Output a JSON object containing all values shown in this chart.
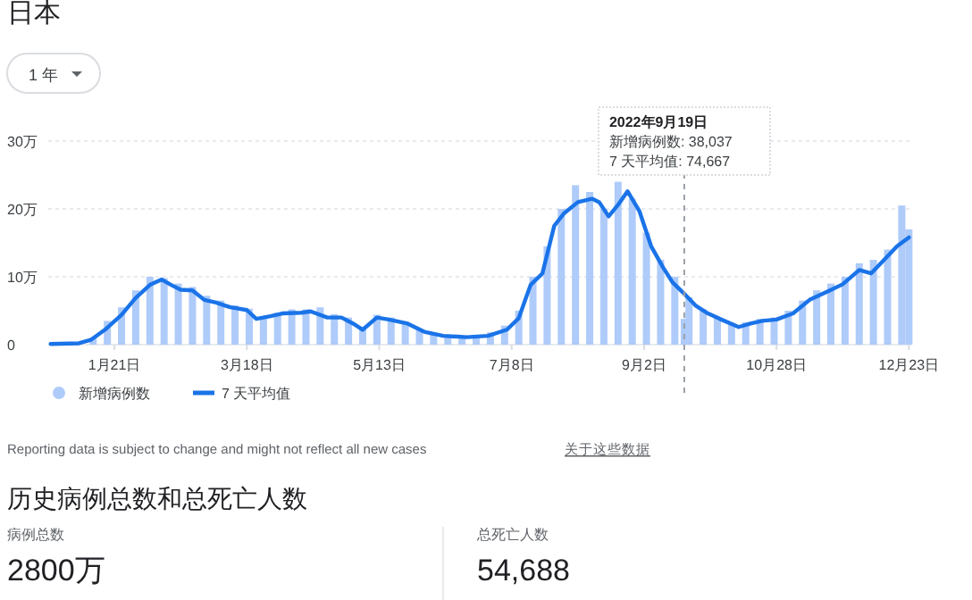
{
  "chart_data": [
    {
      "type": "bar",
      "title": "日本",
      "annotations": [
        "1 年",
        "2022年9月19日",
        "新增病例数: 38,037",
        "7 天平均值: 74,667",
        "Reporting data is subject to change and might not reflect all new cases",
        "关于这些数据"
      ],
      "xlim": [
        "2021-12-24",
        "2022-12-24"
      ],
      "ylim": [
        0,
        30
      ],
      "xticks": [
        {
          "value": "2022-01-21",
          "label": "1月21日"
        },
        {
          "value": "2022-03-18",
          "label": "3月18日"
        },
        {
          "value": "2022-05-13",
          "label": "5月13日"
        },
        {
          "value": "2022-07-08",
          "label": "7月8日"
        },
        {
          "value": "2022-09-02",
          "label": "9月2日"
        },
        {
          "value": "2022-10-28",
          "label": "10月28日"
        },
        {
          "value": "2022-12-23",
          "label": "12月23日"
        }
      ],
      "yticks": [
        0,
        {
          "value": 10,
          "label": "10万"
        },
        {
          "value": 20,
          "label": "20万"
        },
        {
          "value": 30,
          "label": "30万"
        }
      ],
      "grid": "y",
      "legend": "bottom left",
      "ref_lines": [
        {
          "axis": "x",
          "value": "2022-09-19",
          "color": "#9aa0a6",
          "line_style": "dashed"
        }
      ],
      "series": [
        {
          "name": "新增病例数",
          "type": "bar",
          "color": "#aecbfa",
          "x": [
            "2021-12-31",
            "2022-01-12",
            "2022-01-18",
            "2022-01-24",
            "2022-01-30",
            "2022-02-05",
            "2022-02-11",
            "2022-02-17",
            "2022-02-23",
            "2022-03-01",
            "2022-03-07",
            "2022-03-13",
            "2022-03-19",
            "2022-03-25",
            "2022-03-31",
            "2022-04-06",
            "2022-04-12",
            "2022-04-18",
            "2022-04-24",
            "2022-04-30",
            "2022-05-06",
            "2022-05-12",
            "2022-05-18",
            "2022-05-24",
            "2022-05-30",
            "2022-06-05",
            "2022-06-11",
            "2022-06-17",
            "2022-06-23",
            "2022-06-29",
            "2022-07-05",
            "2022-07-11",
            "2022-07-17",
            "2022-07-23",
            "2022-07-29",
            "2022-08-04",
            "2022-08-10",
            "2022-08-16",
            "2022-08-22",
            "2022-08-28",
            "2022-09-03",
            "2022-09-09",
            "2022-09-15",
            "2022-09-19",
            "2022-09-21",
            "2022-09-27",
            "2022-10-03",
            "2022-10-09",
            "2022-10-15",
            "2022-10-21",
            "2022-10-27",
            "2022-11-02",
            "2022-11-08",
            "2022-11-14",
            "2022-11-20",
            "2022-11-26",
            "2022-12-02",
            "2022-12-08",
            "2022-12-14",
            "2022-12-20",
            "2022-12-23"
          ],
          "values": [
            0.1,
            1.0,
            3.5,
            5.5,
            8.0,
            10.0,
            9.8,
            9.0,
            8.5,
            7.2,
            6.5,
            5.8,
            5.3,
            4.2,
            4.7,
            5.2,
            5.2,
            5.5,
            4.5,
            4.0,
            2.5,
            4.4,
            4.0,
            3.3,
            2.2,
            1.5,
            1.3,
            1.2,
            1.3,
            1.8,
            2.8,
            5.0,
            10.0,
            14.5,
            20.0,
            23.5,
            22.5,
            20.0,
            24.0,
            21.5,
            16.5,
            12.5,
            10.0,
            3.8,
            7.0,
            5.2,
            4.0,
            3.0,
            3.3,
            3.8,
            4.0,
            5.0,
            6.5,
            8.0,
            9.0,
            10.0,
            12.0,
            12.5,
            14.0,
            20.5,
            17.0
          ]
        },
        {
          "name": "7 天平均值",
          "type": "line",
          "color": "#1a73e8",
          "x": [
            "2021-12-25",
            "2022-01-06",
            "2022-01-11",
            "2022-01-17",
            "2022-01-24",
            "2022-01-30",
            "2022-02-05",
            "2022-02-10",
            "2022-02-14",
            "2022-02-18",
            "2022-02-23",
            "2022-02-28",
            "2022-03-05",
            "2022-03-11",
            "2022-03-18",
            "2022-03-22",
            "2022-03-28",
            "2022-04-02",
            "2022-04-10",
            "2022-04-14",
            "2022-04-21",
            "2022-04-27",
            "2022-05-02",
            "2022-05-06",
            "2022-05-12",
            "2022-05-17",
            "2022-05-25",
            "2022-06-01",
            "2022-06-09",
            "2022-06-19",
            "2022-06-28",
            "2022-07-06",
            "2022-07-11",
            "2022-07-16",
            "2022-07-21",
            "2022-07-26",
            "2022-07-30",
            "2022-08-05",
            "2022-08-11",
            "2022-08-14",
            "2022-08-18",
            "2022-08-22",
            "2022-08-26",
            "2022-08-31",
            "2022-09-05",
            "2022-09-10",
            "2022-09-14",
            "2022-09-19",
            "2022-09-24",
            "2022-09-29",
            "2022-10-04",
            "2022-10-12",
            "2022-10-17",
            "2022-10-22",
            "2022-10-28",
            "2022-11-04",
            "2022-11-11",
            "2022-11-19",
            "2022-11-25",
            "2022-12-02",
            "2022-12-07",
            "2022-12-12",
            "2022-12-18",
            "2022-12-23"
          ],
          "values": [
            0.1,
            0.2,
            0.7,
            2.2,
            4.4,
            6.9,
            8.8,
            9.6,
            8.8,
            8.1,
            8.0,
            6.6,
            6.2,
            5.5,
            5.1,
            3.8,
            4.2,
            4.6,
            4.7,
            4.9,
            4.0,
            4.0,
            3.1,
            2.2,
            4.0,
            3.7,
            3.1,
            1.9,
            1.3,
            1.1,
            1.3,
            2.2,
            3.9,
            8.8,
            10.5,
            17.5,
            19.3,
            21.0,
            21.5,
            21.0,
            18.9,
            20.6,
            22.6,
            19.7,
            14.5,
            11.4,
            9.2,
            7.5,
            5.7,
            4.6,
            3.8,
            2.6,
            3.1,
            3.5,
            3.7,
            4.6,
            6.6,
            7.9,
            8.9,
            11.0,
            10.5,
            12.3,
            14.5,
            15.8
          ]
        }
      ]
    },
    {
      "type": "other",
      "title": "历史病例总数和总死亡人数",
      "annotations": [
        "病例总数",
        "2800万",
        "总死亡人数",
        "54,688"
      ]
    }
  ]
}
